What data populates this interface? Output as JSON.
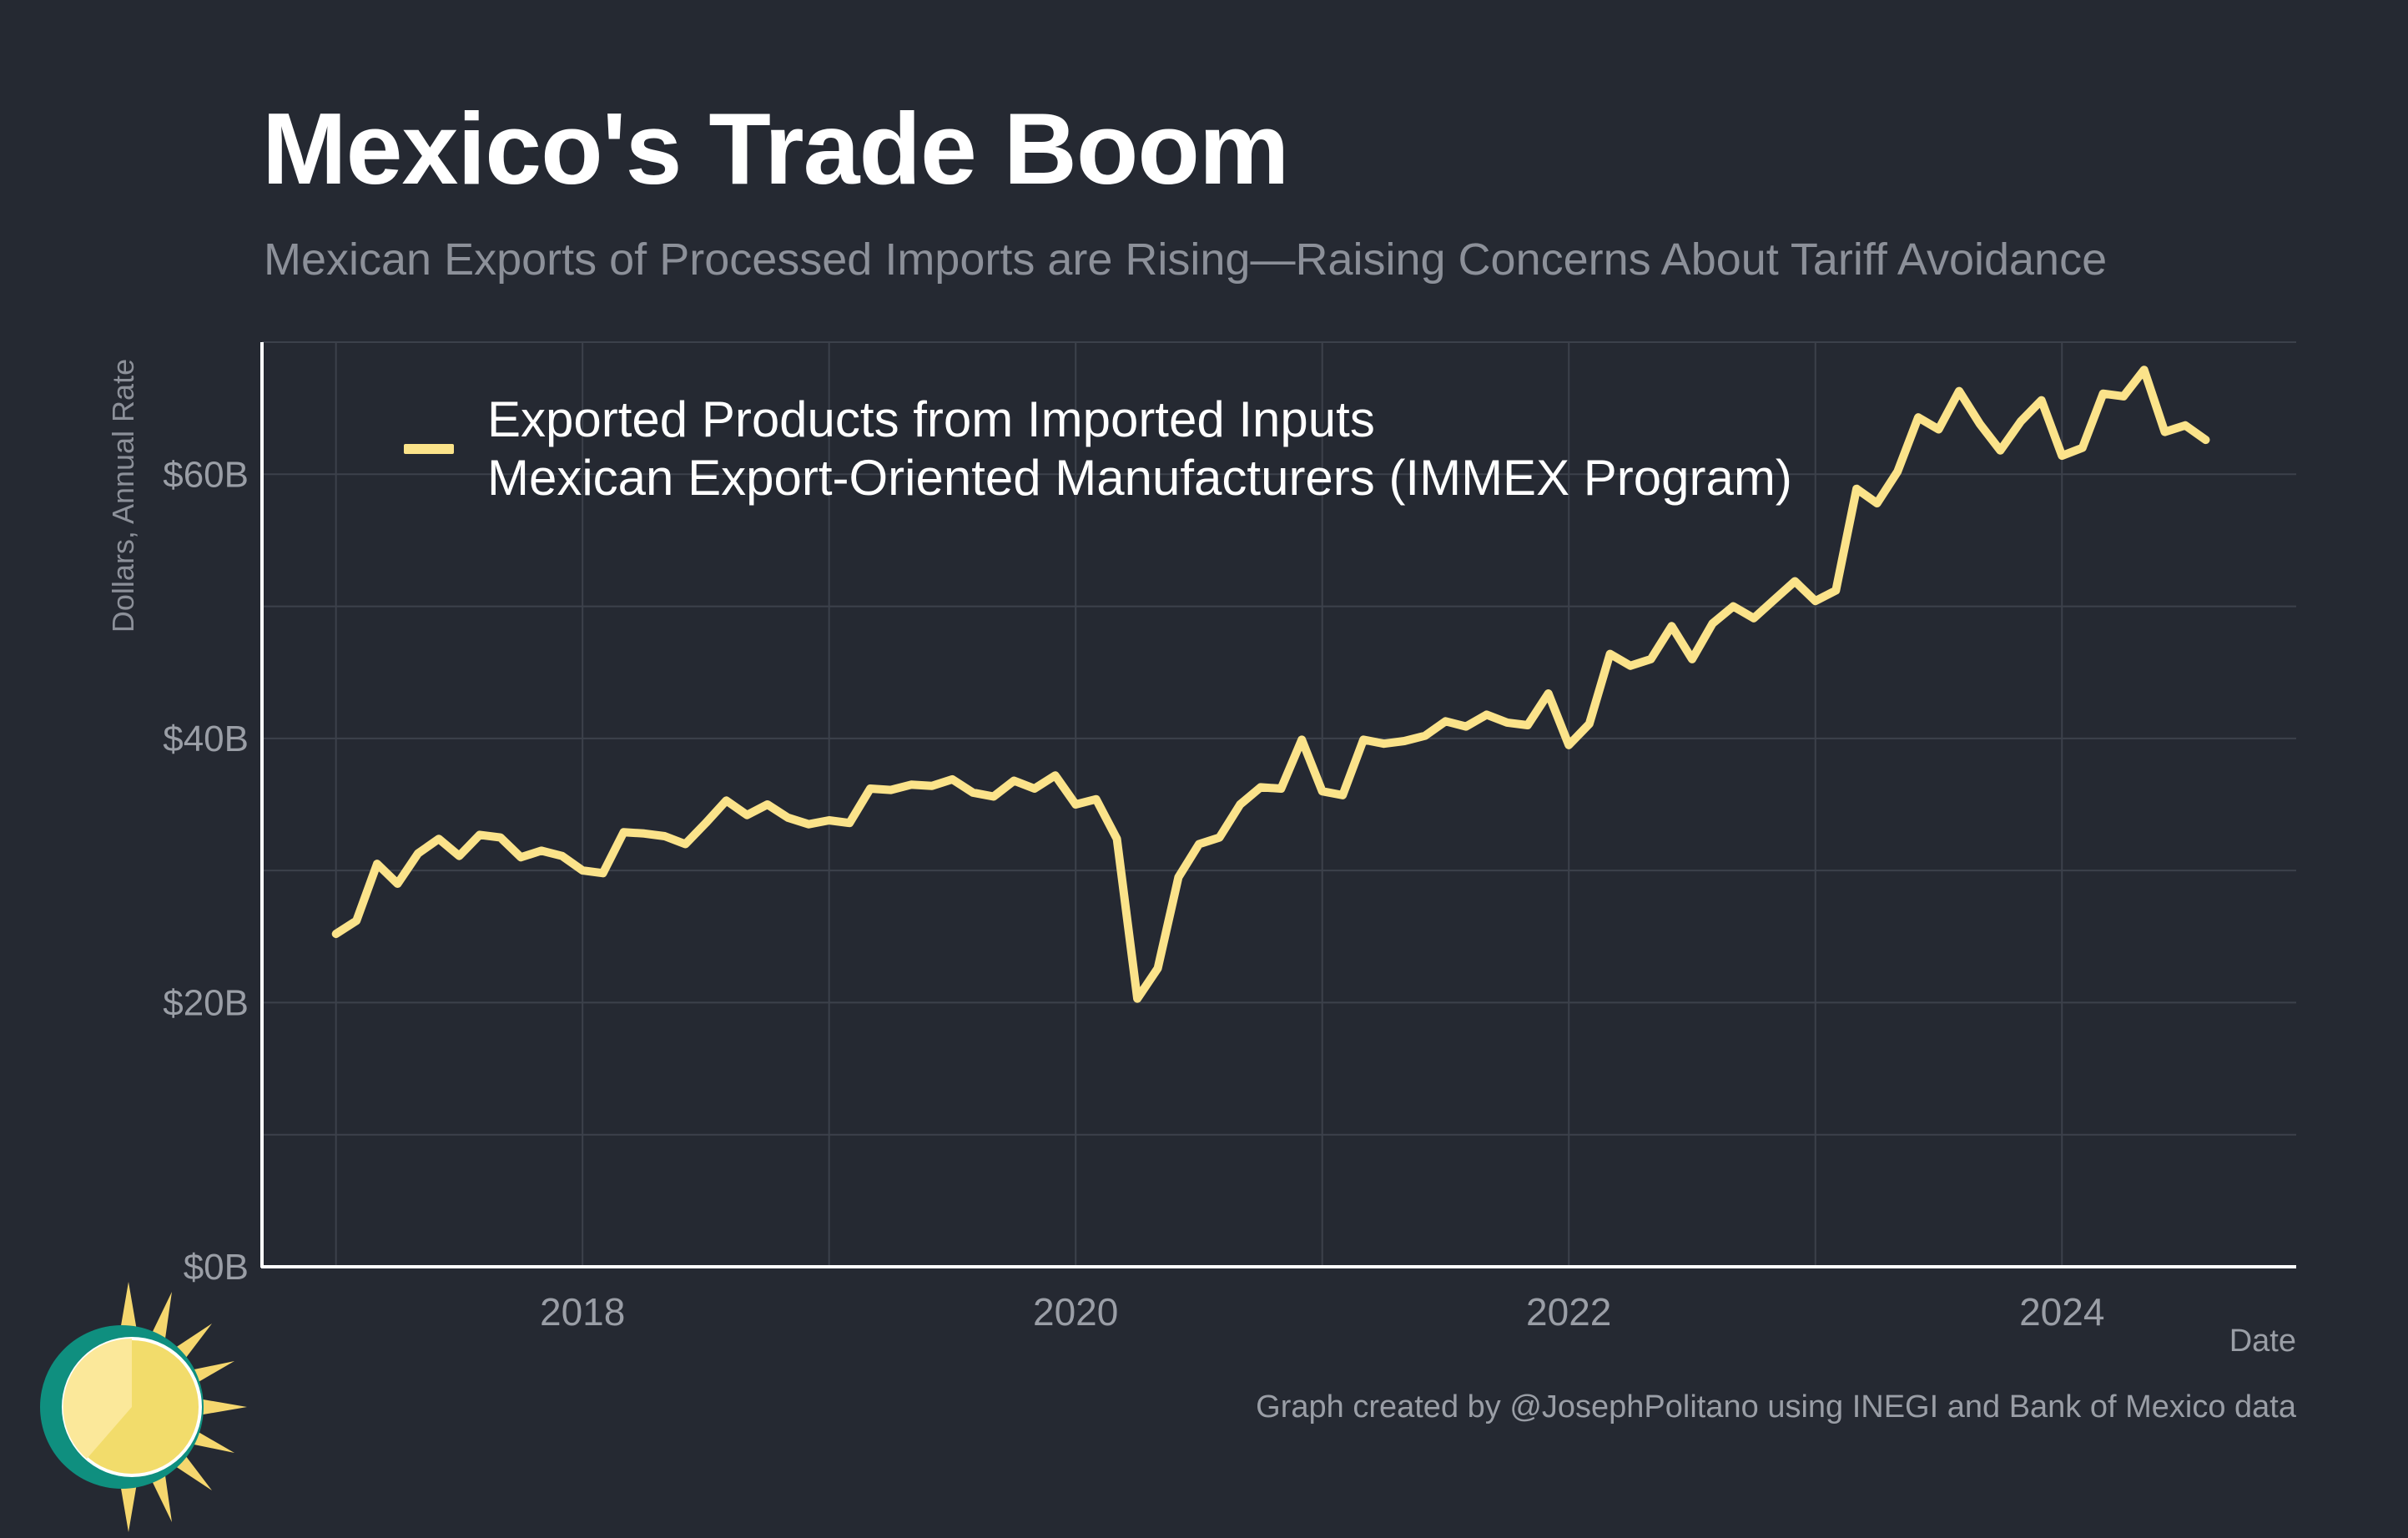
{
  "header": {
    "title": "Mexico's Trade Boom",
    "subtitle": "Mexican Exports of Processed Imports are Rising—Raising Concerns About Tariff Avoidance"
  },
  "footer": {
    "credit": "Graph created by @JosephPolitano using INEGI and Bank of Mexico data"
  },
  "colors": {
    "background": "#252932",
    "line": "#fbe38a",
    "grid": "#3c414b",
    "axis": "#ffffff",
    "tick_label": "#9a9ea6"
  },
  "chart_data": {
    "type": "line",
    "title": "Mexico's Trade Boom",
    "subtitle": "Mexican Exports of Processed Imports are Rising—Raising Concerns About Tariff Avoidance",
    "xlabel": "Date",
    "ylabel": "Dollars, Annual Rate",
    "xlim": [
      2016.7,
      2024.95
    ],
    "ylim": [
      0,
      70
    ],
    "x_ticks": [
      2018,
      2020,
      2022,
      2024
    ],
    "x_tick_labels": [
      "2018",
      "2020",
      "2022",
      "2024"
    ],
    "y_ticks": [
      0,
      20,
      40,
      60
    ],
    "y_tick_labels": [
      "$0B",
      "$20B",
      "$40B",
      "$60B"
    ],
    "grid": true,
    "legend_position": "top-left",
    "series": [
      {
        "name_line1": "Exported Products from Imported Inputs",
        "name_line2": "Mexican Export-Oriented Manufacturers (IMMEX Program)",
        "x": [
          2017.0,
          2017.083,
          2017.167,
          2017.25,
          2017.333,
          2017.417,
          2017.5,
          2017.583,
          2017.667,
          2017.75,
          2017.833,
          2017.917,
          2018.0,
          2018.083,
          2018.167,
          2018.25,
          2018.333,
          2018.417,
          2018.5,
          2018.583,
          2018.667,
          2018.75,
          2018.833,
          2018.917,
          2019.0,
          2019.083,
          2019.167,
          2019.25,
          2019.333,
          2019.417,
          2019.5,
          2019.583,
          2019.667,
          2019.75,
          2019.833,
          2019.917,
          2020.0,
          2020.083,
          2020.167,
          2020.25,
          2020.333,
          2020.417,
          2020.5,
          2020.583,
          2020.667,
          2020.75,
          2020.833,
          2020.917,
          2021.0,
          2021.083,
          2021.167,
          2021.25,
          2021.333,
          2021.417,
          2021.5,
          2021.583,
          2021.667,
          2021.75,
          2021.833,
          2021.917,
          2022.0,
          2022.083,
          2022.167,
          2022.25,
          2022.333,
          2022.417,
          2022.5,
          2022.583,
          2022.667,
          2022.75,
          2022.833,
          2022.917,
          2023.0,
          2023.083,
          2023.167,
          2023.25,
          2023.333,
          2023.417,
          2023.5,
          2023.583,
          2023.667,
          2023.75,
          2023.833,
          2023.917,
          2024.0,
          2024.083,
          2024.167,
          2024.25,
          2024.333,
          2024.417,
          2024.5,
          2024.583
        ],
        "values": [
          25.2,
          26.2,
          30.5,
          29.0,
          31.3,
          32.4,
          31.1,
          32.7,
          32.5,
          31.0,
          31.5,
          31.1,
          30.0,
          29.8,
          32.9,
          32.8,
          32.6,
          32.0,
          33.6,
          35.3,
          34.2,
          35.0,
          34.0,
          33.5,
          33.8,
          33.6,
          36.2,
          36.1,
          36.5,
          36.4,
          36.9,
          35.9,
          35.6,
          36.8,
          36.2,
          37.2,
          35.0,
          35.4,
          32.4,
          20.3,
          22.6,
          29.5,
          32.0,
          32.5,
          35.0,
          36.3,
          36.2,
          39.9,
          36.0,
          35.7,
          39.9,
          39.6,
          39.8,
          40.2,
          41.3,
          40.9,
          41.8,
          41.2,
          41.0,
          43.4,
          39.5,
          41.1,
          46.4,
          45.5,
          46.0,
          48.5,
          46.0,
          48.7,
          50.0,
          49.1,
          50.5,
          51.9,
          50.4,
          51.2,
          58.9,
          57.8,
          60.2,
          64.3,
          63.4,
          66.3,
          63.8,
          61.8,
          64.0,
          65.6,
          61.4,
          62.0,
          66.1,
          65.9,
          67.9,
          63.2,
          63.7,
          62.6
        ]
      }
    ]
  }
}
